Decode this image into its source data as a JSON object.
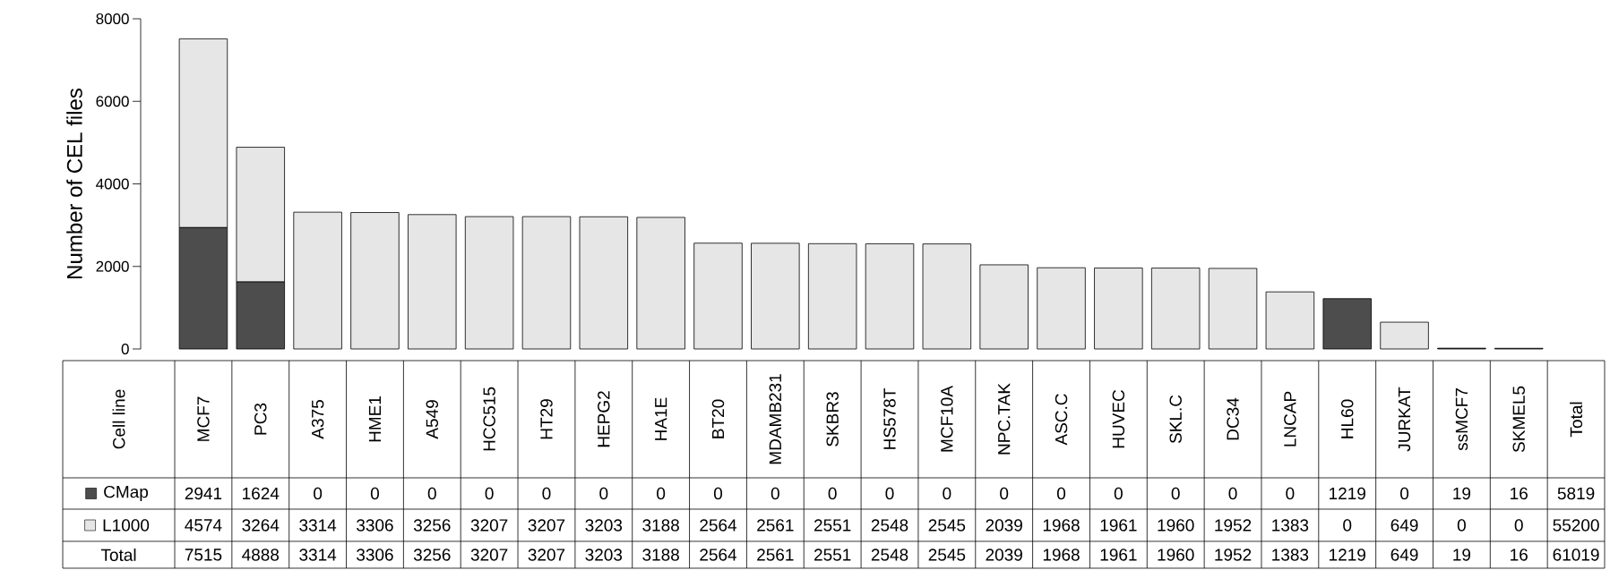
{
  "chart_data": {
    "type": "bar",
    "stacked": true,
    "ylabel": "Number of CEL files",
    "legend": "bottom left",
    "categories": [
      "MCF7",
      "PC3",
      "A375",
      "HME1",
      "A549",
      "HCC515",
      "HT29",
      "HEPG2",
      "HA1E",
      "BT20",
      "MDAMB231",
      "SKBR3",
      "HS578T",
      "MCF10A",
      "NPC.TAK",
      "ASC.C",
      "HUVEC",
      "SKL.C",
      "DC34",
      "LNCAP",
      "HL60",
      "JURKAT",
      "ssMCF7",
      "SKMEL5"
    ],
    "ylim": [
      0,
      8000
    ],
    "yticks": [
      0,
      2000,
      4000,
      6000,
      8000
    ],
    "series": [
      {
        "name": "CMap",
        "color": "#4d4d4d",
        "values": [
          2941,
          1624,
          0,
          0,
          0,
          0,
          0,
          0,
          0,
          0,
          0,
          0,
          0,
          0,
          0,
          0,
          0,
          0,
          0,
          0,
          1219,
          0,
          19,
          16
        ],
        "value_labels": [
          "2941",
          "1624",
          "0",
          "0",
          "0",
          "0",
          "0",
          "0",
          "0",
          "0",
          "0",
          "0",
          "0",
          "0",
          "0",
          "0",
          "0",
          "0",
          "0",
          "0",
          "1219",
          "0",
          "19",
          "16"
        ]
      },
      {
        "name": "L1000",
        "color": "#e6e6e6",
        "values": [
          4574,
          3264,
          3314,
          3306,
          3256,
          3207,
          3207,
          3203,
          3188,
          2564,
          2561,
          2551,
          2548,
          2545,
          2039,
          1968,
          1961,
          1960,
          1952,
          1383,
          0,
          649,
          0,
          0
        ],
        "value_labels": [
          "4574",
          "3264",
          "3314",
          "3306",
          "3256",
          "3207",
          "3207",
          "3203",
          "3188",
          "2564",
          "2561",
          "2551",
          "2548",
          "2545",
          "2039",
          "1968",
          "1961",
          "1960",
          "1952",
          "1383",
          "0",
          "649",
          "0",
          "0"
        ]
      }
    ],
    "annotations": [
      "Cell line",
      "Total",
      "Total",
      "5819",
      "55200",
      "61019",
      "7515",
      "4888",
      "3314",
      "3306",
      "3256",
      "3207",
      "3207",
      "3203",
      "3188",
      "2564",
      "2561",
      "2551",
      "2548",
      "2545",
      "2039",
      "1968",
      "1961",
      "1960",
      "1952",
      "1383",
      "1219",
      "649",
      "19",
      "16"
    ]
  }
}
